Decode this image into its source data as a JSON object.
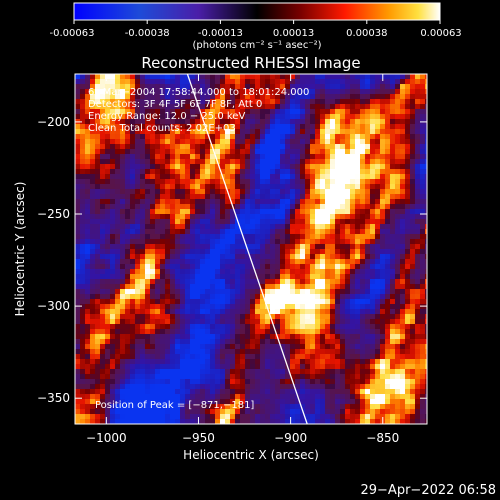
{
  "colorbar": {
    "ticks": [
      "-0.00063",
      "-0.00038",
      "-0.00013",
      "0.00013",
      "0.00038",
      "0.00063"
    ],
    "units": "(photons cm⁻² s⁻¹ asec⁻²)"
  },
  "chart_data": {
    "type": "heatmap",
    "title": "Reconstructed RHESSI Image",
    "xlabel": "Heliocentric X (arcsec)",
    "ylabel": "Heliocentric Y (arcsec)",
    "xlim": [
      -1017,
      -826
    ],
    "ylim": [
      -364,
      -174
    ],
    "x_ticks": [
      -1000,
      -950,
      -900,
      -850
    ],
    "x_tick_labels": [
      "−1000",
      "−950",
      "−900",
      "−850"
    ],
    "y_ticks": [
      -200,
      -250,
      -300,
      -350
    ],
    "y_tick_labels": [
      "−200",
      "−250",
      "−300",
      "−350"
    ],
    "value_range": [
      -0.00063,
      0.00063
    ],
    "limb_line": [
      [
        -956,
        -174
      ],
      [
        -891,
        -364
      ]
    ],
    "annotations": [
      "6−Mar−2004 17:58:44.000 to 18:01:24.000",
      "Detectors: 3F 4F 5F 6F 7F 8F, Att 0",
      "Energy Range: 12.0 − 25.0 keV",
      "Clean     Total counts: 2.02E+03"
    ],
    "peak_label": "Position of Peak = [−871,−181]"
  },
  "footer": {
    "timestamp": "29−Apr−2022 06:58"
  }
}
